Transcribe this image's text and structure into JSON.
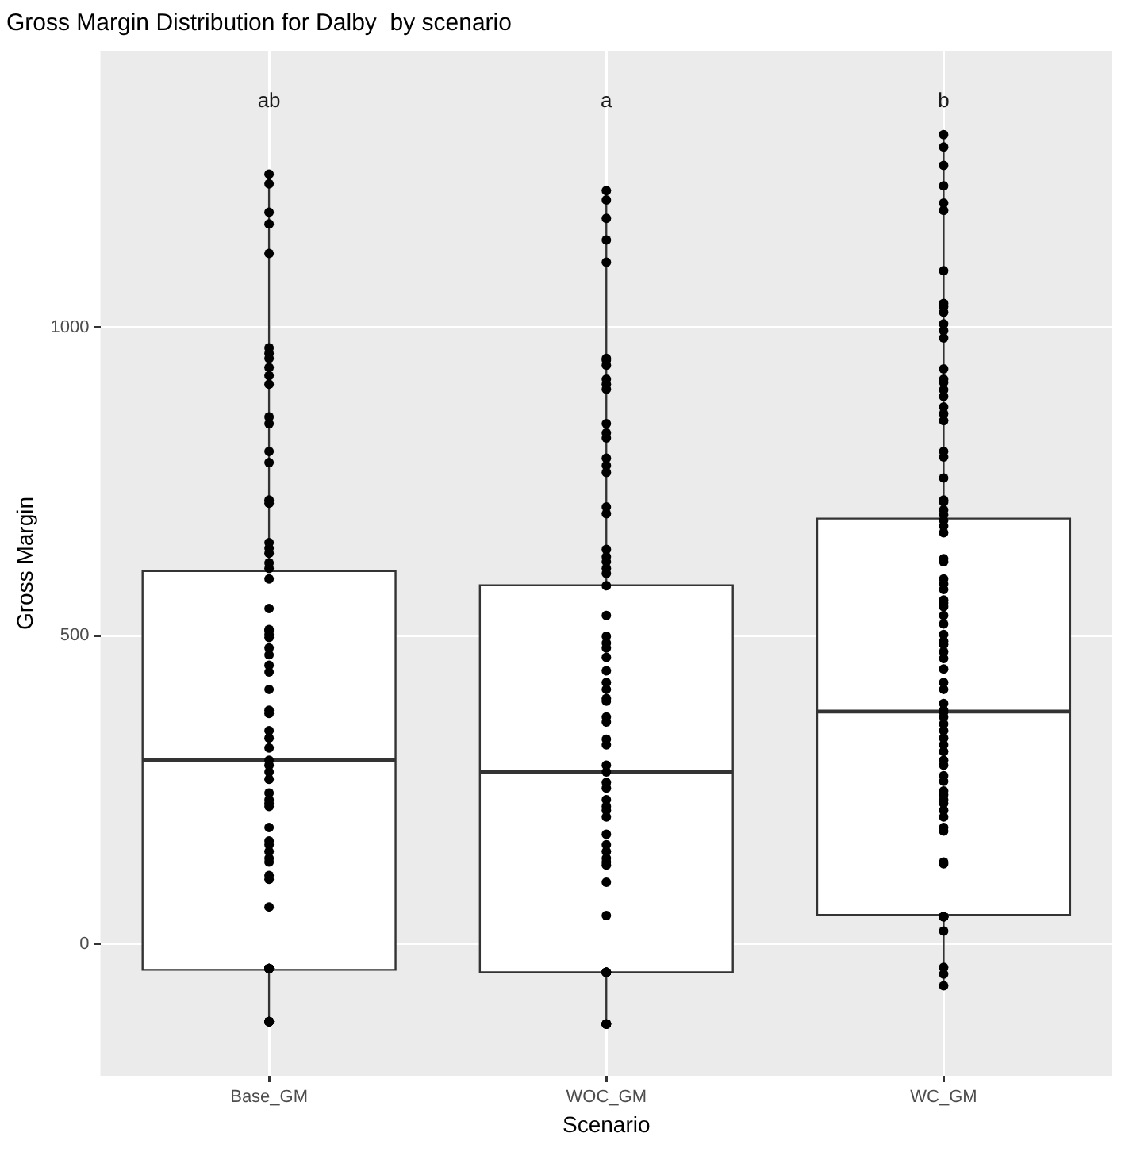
{
  "chart_data": {
    "type": "box",
    "title": "Gross Margin Distribution for Dalby  by scenario",
    "xlabel": "Scenario",
    "ylabel": "Gross Margin",
    "categories": [
      "Base_GM",
      "WOC_GM",
      "WC_GM"
    ],
    "boxes": [
      {
        "low": -126,
        "q1": -42,
        "median": 298,
        "q3": 605,
        "high": 1241
      },
      {
        "low": -129,
        "q1": -46,
        "median": 279,
        "q3": 582,
        "high": 1220
      },
      {
        "low": -68,
        "q1": 47,
        "median": 377,
        "q3": 690,
        "high": 1311
      }
    ],
    "series": [
      {
        "type": "scatter",
        "color": "#000000",
        "x": [
          "Base_GM",
          "Base_GM",
          "Base_GM",
          "Base_GM",
          "Base_GM",
          "Base_GM",
          "Base_GM",
          "Base_GM",
          "Base_GM",
          "Base_GM",
          "Base_GM",
          "Base_GM",
          "Base_GM",
          "Base_GM",
          "Base_GM",
          "Base_GM",
          "Base_GM",
          "Base_GM",
          "Base_GM",
          "Base_GM",
          "Base_GM",
          "Base_GM",
          "Base_GM",
          "Base_GM",
          "Base_GM",
          "Base_GM",
          "Base_GM",
          "Base_GM",
          "Base_GM",
          "Base_GM",
          "Base_GM",
          "Base_GM",
          "Base_GM",
          "Base_GM",
          "Base_GM",
          "Base_GM",
          "Base_GM",
          "Base_GM",
          "Base_GM",
          "Base_GM",
          "Base_GM",
          "Base_GM",
          "Base_GM",
          "Base_GM",
          "Base_GM",
          "Base_GM",
          "Base_GM",
          "Base_GM",
          "Base_GM",
          "Base_GM",
          "Base_GM",
          "Base_GM",
          "Base_GM",
          "Base_GM",
          "Base_GM",
          "Base_GM",
          "Base_GM",
          "Base_GM",
          "Base_GM",
          "Base_GM",
          "Base_GM",
          "Base_GM",
          "Base_GM",
          "Base_GM",
          "Base_GM",
          "Base_GM",
          "Base_GM",
          "Base_GM"
        ],
        "values": [
          1249,
          1233,
          1187,
          1168,
          1120,
          958,
          967,
          950,
          935,
          922,
          908,
          855,
          844,
          799,
          781,
          720,
          715,
          651,
          642,
          634,
          618,
          609,
          592,
          544,
          510,
          508,
          502,
          497,
          480,
          469,
          452,
          441,
          413,
          379,
          374,
          346,
          334,
          318,
          298,
          290,
          279,
          267,
          245,
          234,
          228,
          223,
          189,
          167,
          161,
          150,
          139,
          133,
          111,
          105,
          60,
          -40,
          -40,
          -40,
          -40,
          -40,
          -40,
          -126,
          -126,
          -126,
          -126,
          -126,
          -126,
          -126
        ]
      },
      {
        "type": "scatter",
        "color": "#000000",
        "x": [
          "WOC_GM",
          "WOC_GM",
          "WOC_GM",
          "WOC_GM",
          "WOC_GM",
          "WOC_GM",
          "WOC_GM",
          "WOC_GM",
          "WOC_GM",
          "WOC_GM",
          "WOC_GM",
          "WOC_GM",
          "WOC_GM",
          "WOC_GM",
          "WOC_GM",
          "WOC_GM",
          "WOC_GM",
          "WOC_GM",
          "WOC_GM",
          "WOC_GM",
          "WOC_GM",
          "WOC_GM",
          "WOC_GM",
          "WOC_GM",
          "WOC_GM",
          "WOC_GM",
          "WOC_GM",
          "WOC_GM",
          "WOC_GM",
          "WOC_GM",
          "WOC_GM",
          "WOC_GM",
          "WOC_GM",
          "WOC_GM",
          "WOC_GM",
          "WOC_GM",
          "WOC_GM",
          "WOC_GM",
          "WOC_GM",
          "WOC_GM",
          "WOC_GM",
          "WOC_GM",
          "WOC_GM",
          "WOC_GM",
          "WOC_GM",
          "WOC_GM",
          "WOC_GM",
          "WOC_GM",
          "WOC_GM",
          "WOC_GM",
          "WOC_GM",
          "WOC_GM",
          "WOC_GM",
          "WOC_GM",
          "WOC_GM",
          "WOC_GM",
          "WOC_GM",
          "WOC_GM",
          "WOC_GM",
          "WOC_GM",
          "WOC_GM",
          "WOC_GM",
          "WOC_GM",
          "WOC_GM",
          "WOC_GM",
          "WOC_GM"
        ],
        "values": [
          1222,
          1207,
          1177,
          1142,
          1106,
          947,
          939,
          950,
          916,
          908,
          900,
          844,
          821,
          829,
          788,
          776,
          765,
          709,
          698,
          640,
          628,
          620,
          609,
          601,
          581,
          533,
          499,
          488,
          480,
          465,
          443,
          424,
          413,
          398,
          394,
          368,
          360,
          332,
          323,
          290,
          279,
          262,
          253,
          234,
          223,
          217,
          206,
          178,
          161,
          150,
          139,
          133,
          128,
          100,
          46,
          -46,
          -46,
          -46,
          -46,
          -46,
          -46,
          -130,
          -130,
          -130,
          -130,
          -130
        ]
      },
      {
        "type": "scatter",
        "color": "#000000",
        "x": [
          "WC_GM",
          "WC_GM",
          "WC_GM",
          "WC_GM",
          "WC_GM",
          "WC_GM",
          "WC_GM",
          "WC_GM",
          "WC_GM",
          "WC_GM",
          "WC_GM",
          "WC_GM",
          "WC_GM",
          "WC_GM",
          "WC_GM",
          "WC_GM",
          "WC_GM",
          "WC_GM",
          "WC_GM",
          "WC_GM",
          "WC_GM",
          "WC_GM",
          "WC_GM",
          "WC_GM",
          "WC_GM",
          "WC_GM",
          "WC_GM",
          "WC_GM",
          "WC_GM",
          "WC_GM",
          "WC_GM",
          "WC_GM",
          "WC_GM",
          "WC_GM",
          "WC_GM",
          "WC_GM",
          "WC_GM",
          "WC_GM",
          "WC_GM",
          "WC_GM",
          "WC_GM",
          "WC_GM",
          "WC_GM",
          "WC_GM",
          "WC_GM",
          "WC_GM",
          "WC_GM",
          "WC_GM",
          "WC_GM",
          "WC_GM",
          "WC_GM",
          "WC_GM",
          "WC_GM",
          "WC_GM",
          "WC_GM",
          "WC_GM",
          "WC_GM",
          "WC_GM",
          "WC_GM",
          "WC_GM",
          "WC_GM",
          "WC_GM",
          "WC_GM",
          "WC_GM",
          "WC_GM",
          "WC_GM",
          "WC_GM",
          "WC_GM",
          "WC_GM",
          "WC_GM",
          "WC_GM",
          "WC_GM",
          "WC_GM",
          "WC_GM",
          "WC_GM",
          "WC_GM",
          "WC_GM",
          "WC_GM",
          "WC_GM",
          "WC_GM",
          "WC_GM"
        ],
        "values": [
          1313,
          1293,
          1263,
          1230,
          1202,
          1190,
          1092,
          1039,
          1034,
          1025,
          1006,
          995,
          983,
          933,
          916,
          911,
          899,
          888,
          871,
          860,
          849,
          799,
          790,
          756,
          720,
          717,
          704,
          696,
          687,
          678,
          667,
          625,
          620,
          592,
          584,
          575,
          558,
          553,
          547,
          533,
          519,
          502,
          491,
          486,
          474,
          463,
          446,
          424,
          413,
          390,
          379,
          376,
          368,
          357,
          346,
          334,
          323,
          312,
          298,
          290,
          273,
          264,
          248,
          242,
          234,
          228,
          217,
          206,
          189,
          183,
          133,
          130,
          44,
          44,
          44,
          44,
          44,
          21,
          -38,
          -49,
          -68
        ]
      }
    ],
    "annotations": [
      "ab",
      "a",
      "b"
    ],
    "ylim": [
      -214,
      1449
    ],
    "yticks": [
      0,
      500,
      1000
    ],
    "grid": true,
    "marker": "circle"
  }
}
